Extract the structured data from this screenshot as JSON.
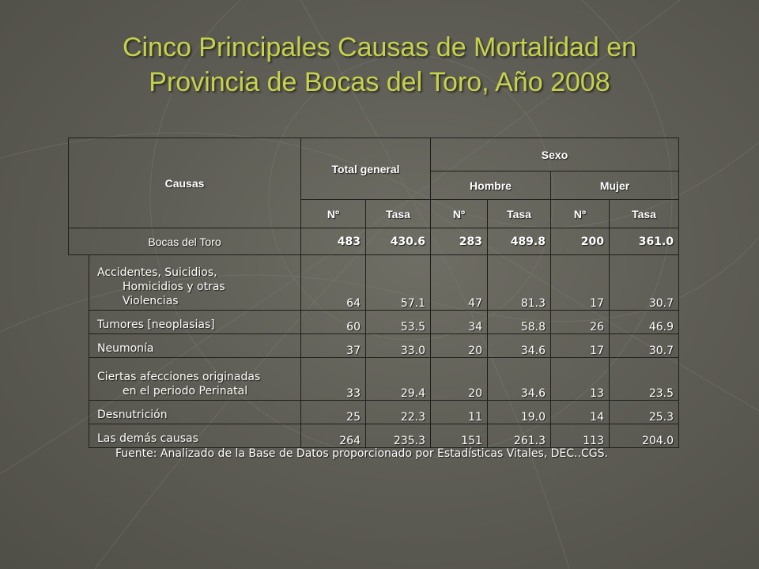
{
  "slide": {
    "title_lines": [
      "Cinco Principales Causas de Mortalidad en",
      "Provincia de Bocas del Toro, Año 2008"
    ],
    "source_note": "Fuente: Analizado de la Base de Datos proporcionado por Estadísticas Vitales,  DEC..CGS."
  },
  "table": {
    "headers": {
      "causas": "Causas",
      "total_general": "Total general",
      "sexo": "Sexo",
      "hombre": "Hombre",
      "mujer": "Mujer",
      "sub": [
        "Nº",
        "Tasa",
        "Nº",
        "Tasa",
        "Nº",
        "Tasa"
      ]
    },
    "total_row": {
      "label": "Bocas del Toro",
      "values": [
        "483",
        "430.6",
        "283",
        "489.8",
        "200",
        "361.0"
      ]
    },
    "rows": [
      {
        "lines": [
          "Accidentes, Suicidios,",
          "Homicidios y otras",
          "Violencias"
        ],
        "values": [
          "64",
          "57.1",
          "47",
          "81.3",
          "17",
          "30.7"
        ]
      },
      {
        "lines": [
          "Tumores [neoplasias]"
        ],
        "values": [
          "60",
          "53.5",
          "34",
          "58.8",
          "26",
          "46.9"
        ]
      },
      {
        "lines": [
          "Neumonía"
        ],
        "values": [
          "37",
          "33.0",
          "20",
          "34.6",
          "17",
          "30.7"
        ]
      },
      {
        "lines": [
          "Ciertas afecciones originadas",
          "en el periodo Perinatal"
        ],
        "values": [
          "33",
          "29.4",
          "20",
          "34.6",
          "13",
          "23.5"
        ]
      },
      {
        "lines": [
          "Desnutrición"
        ],
        "values": [
          "25",
          "22.3",
          "11",
          "19.0",
          "14",
          "25.3"
        ]
      },
      {
        "lines": [
          "Las demás causas"
        ],
        "values": [
          "264",
          "235.3",
          "151",
          "261.3",
          "113",
          "204.0"
        ]
      }
    ]
  }
}
